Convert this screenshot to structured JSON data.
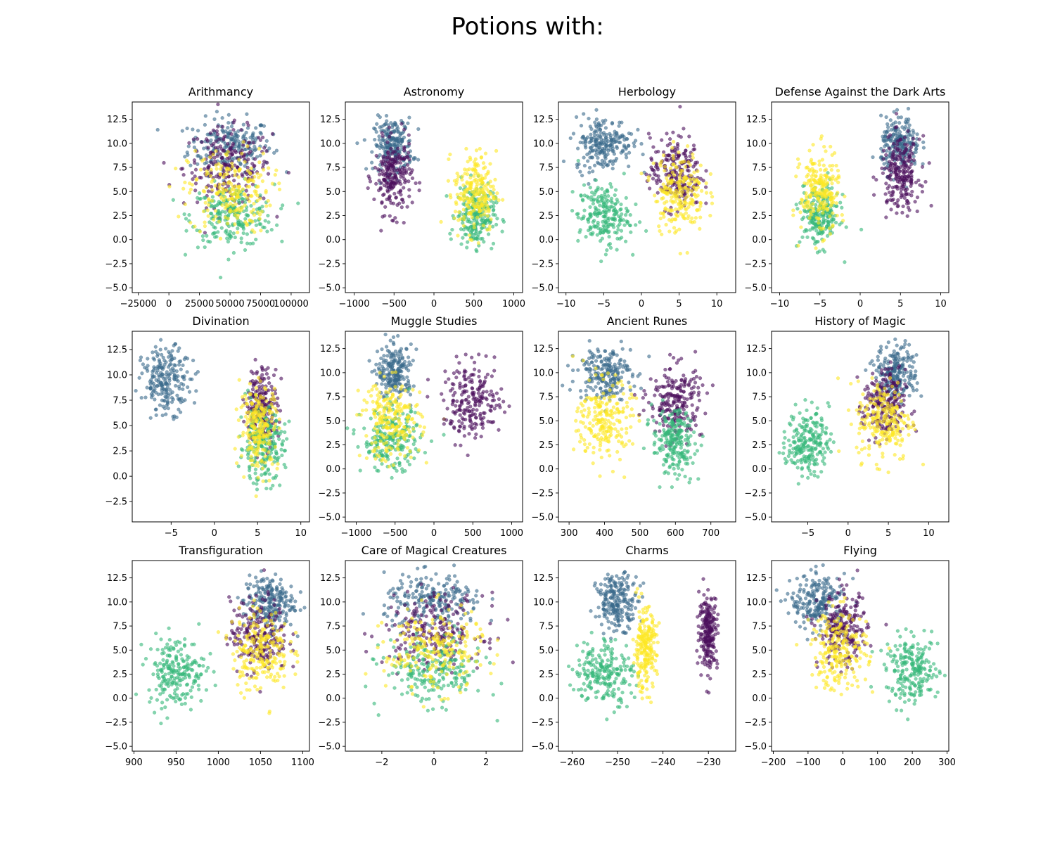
{
  "title": "Potions with:",
  "colors": {
    "Ravenclaw": "#3b6a8c",
    "Slytherin": "#4b0f5c",
    "Gryffindor": "#fde725",
    "Hufflepuff": "#35b779"
  },
  "chart_data": [
    {
      "type": "scatter",
      "title": "Arithmancy",
      "xlim": [
        -30000,
        115000
      ],
      "ylim": [
        -5.5,
        14.3
      ],
      "xticks": [
        {
          "v": -25000,
          "l": "−25000"
        },
        {
          "v": 0,
          "l": "0"
        },
        {
          "v": 25000,
          "l": "25000"
        },
        {
          "v": 50000,
          "l": "50000"
        },
        {
          "v": 75000,
          "l": "75000"
        },
        {
          "v": 100000,
          "l": "100000"
        }
      ],
      "series": [
        {
          "color": "#3b6a8c",
          "x_center": 50000,
          "x_spread": 17000,
          "y_center": 9.8,
          "y_spread": 1.4
        },
        {
          "color": "#4b0f5c",
          "x_center": 48000,
          "x_spread": 18000,
          "y_center": 7.5,
          "y_spread": 2.0
        },
        {
          "color": "#35b779",
          "x_center": 52000,
          "x_spread": 17000,
          "y_center": 2.5,
          "y_spread": 1.6
        },
        {
          "color": "#fde725",
          "x_center": 50000,
          "x_spread": 17000,
          "y_center": 5.0,
          "y_spread": 2.2
        }
      ]
    },
    {
      "type": "scatter",
      "title": "Astronomy",
      "xlim": [
        -1110,
        1110
      ],
      "ylim": [
        -5.5,
        14.3
      ],
      "xticks": [
        {
          "v": -1000,
          "l": "−1000"
        },
        {
          "v": -500,
          "l": "−500"
        },
        {
          "v": 0,
          "l": "0"
        },
        {
          "v": 500,
          "l": "500"
        },
        {
          "v": 1000,
          "l": "1000"
        }
      ],
      "series": [
        {
          "color": "#3b6a8c",
          "x_center": -510,
          "x_spread": 120,
          "y_center": 9.8,
          "y_spread": 1.4
        },
        {
          "color": "#4b0f5c",
          "x_center": -510,
          "x_spread": 120,
          "y_center": 6.5,
          "y_spread": 1.9
        },
        {
          "color": "#35b779",
          "x_center": 520,
          "x_spread": 120,
          "y_center": 2.5,
          "y_spread": 1.6
        },
        {
          "color": "#fde725",
          "x_center": 520,
          "x_spread": 130,
          "y_center": 5.0,
          "y_spread": 2.1
        }
      ]
    },
    {
      "type": "scatter",
      "title": "Herbology",
      "xlim": [
        -11,
        12.5
      ],
      "ylim": [
        -5.5,
        14.3
      ],
      "xticks": [
        {
          "v": -10,
          "l": "−10"
        },
        {
          "v": -5,
          "l": "−5"
        },
        {
          "v": 0,
          "l": "0"
        },
        {
          "v": 5,
          "l": "5"
        },
        {
          "v": 10,
          "l": "10"
        }
      ],
      "series": [
        {
          "color": "#3b6a8c",
          "x_center": -5,
          "x_spread": 1.9,
          "y_center": 10.0,
          "y_spread": 1.4
        },
        {
          "color": "#35b779",
          "x_center": -5,
          "x_spread": 1.7,
          "y_center": 2.5,
          "y_spread": 1.6
        },
        {
          "color": "#4b0f5c",
          "x_center": 4.5,
          "x_spread": 1.7,
          "y_center": 7.0,
          "y_spread": 1.9
        },
        {
          "color": "#fde725",
          "x_center": 5.0,
          "x_spread": 1.7,
          "y_center": 5.0,
          "y_spread": 2.1
        }
      ]
    },
    {
      "type": "scatter",
      "title": "Defense Against the Dark Arts",
      "xlim": [
        -11,
        11
      ],
      "ylim": [
        -5.5,
        14.3
      ],
      "xticks": [
        {
          "v": -10,
          "l": "−10"
        },
        {
          "v": -5,
          "l": "−5"
        },
        {
          "v": 0,
          "l": "0"
        },
        {
          "v": 5,
          "l": "5"
        },
        {
          "v": 10,
          "l": "10"
        }
      ],
      "series": [
        {
          "color": "#3b6a8c",
          "x_center": 5,
          "x_spread": 1.2,
          "y_center": 9.8,
          "y_spread": 1.4
        },
        {
          "color": "#4b0f5c",
          "x_center": 5,
          "x_spread": 1.2,
          "y_center": 6.8,
          "y_spread": 1.9
        },
        {
          "color": "#35b779",
          "x_center": -5,
          "x_spread": 1.2,
          "y_center": 2.5,
          "y_spread": 1.6
        },
        {
          "color": "#fde725",
          "x_center": -5,
          "x_spread": 1.2,
          "y_center": 5.0,
          "y_spread": 2.1
        }
      ]
    },
    {
      "type": "scatter",
      "title": "Divination",
      "xlim": [
        -9.5,
        11
      ],
      "ylim": [
        -4.5,
        14.3
      ],
      "xticks": [
        {
          "v": -5,
          "l": "−5"
        },
        {
          "v": 0,
          "l": "0"
        },
        {
          "v": 5,
          "l": "5"
        },
        {
          "v": 10,
          "l": "10"
        }
      ],
      "series": [
        {
          "color": "#3b6a8c",
          "x_center": -5.5,
          "x_spread": 1.4,
          "y_center": 9.5,
          "y_spread": 1.6
        },
        {
          "color": "#4b0f5c",
          "x_center": 5.5,
          "x_spread": 0.9,
          "y_center": 7.0,
          "y_spread": 1.9
        },
        {
          "color": "#35b779",
          "x_center": 5.5,
          "x_spread": 1.3,
          "y_center": 3.0,
          "y_spread": 1.8
        },
        {
          "color": "#fde725",
          "x_center": 5.2,
          "x_spread": 1.1,
          "y_center": 5.0,
          "y_spread": 2.1
        }
      ]
    },
    {
      "type": "scatter",
      "title": "Muggle Studies",
      "xlim": [
        -1140,
        1140
      ],
      "ylim": [
        -5.5,
        14.3
      ],
      "xticks": [
        {
          "v": -1000,
          "l": "−1000"
        },
        {
          "v": -500,
          "l": "−500"
        },
        {
          "v": 0,
          "l": "0"
        },
        {
          "v": 500,
          "l": "500"
        },
        {
          "v": 1000,
          "l": "1000"
        }
      ],
      "series": [
        {
          "color": "#3b6a8c",
          "x_center": -500,
          "x_spread": 110,
          "y_center": 10.0,
          "y_spread": 1.4
        },
        {
          "color": "#35b779",
          "x_center": -550,
          "x_spread": 190,
          "y_center": 3.0,
          "y_spread": 1.6
        },
        {
          "color": "#fde725",
          "x_center": -550,
          "x_spread": 190,
          "y_center": 5.0,
          "y_spread": 2.1
        },
        {
          "color": "#4b0f5c",
          "x_center": 500,
          "x_spread": 190,
          "y_center": 7.0,
          "y_spread": 1.9
        }
      ]
    },
    {
      "type": "scatter",
      "title": "Ancient Runes",
      "xlim": [
        270,
        770
      ],
      "ylim": [
        -5.5,
        14.3
      ],
      "xticks": [
        {
          "v": 300,
          "l": "300"
        },
        {
          "v": 400,
          "l": "400"
        },
        {
          "v": 500,
          "l": "500"
        },
        {
          "v": 600,
          "l": "600"
        },
        {
          "v": 700,
          "l": "700"
        }
      ],
      "series": [
        {
          "color": "#3b6a8c",
          "x_center": 400,
          "x_spread": 38,
          "y_center": 10.0,
          "y_spread": 1.4
        },
        {
          "color": "#fde725",
          "x_center": 400,
          "x_spread": 38,
          "y_center": 5.0,
          "y_spread": 2.1
        },
        {
          "color": "#4b0f5c",
          "x_center": 600,
          "x_spread": 38,
          "y_center": 7.0,
          "y_spread": 1.9
        },
        {
          "color": "#35b779",
          "x_center": 595,
          "x_spread": 30,
          "y_center": 2.8,
          "y_spread": 1.7
        }
      ]
    },
    {
      "type": "scatter",
      "title": "History of Magic",
      "xlim": [
        -9.5,
        12.5
      ],
      "ylim": [
        -5.5,
        14.3
      ],
      "xticks": [
        {
          "v": -5,
          "l": "−5"
        },
        {
          "v": 0,
          "l": "0"
        },
        {
          "v": 5,
          "l": "5"
        },
        {
          "v": 10,
          "l": "10"
        }
      ],
      "series": [
        {
          "color": "#35b779",
          "x_center": -5,
          "x_spread": 1.3,
          "y_center": 2.8,
          "y_spread": 1.7
        },
        {
          "color": "#3b6a8c",
          "x_center": 6,
          "x_spread": 1.3,
          "y_center": 10.0,
          "y_spread": 1.4
        },
        {
          "color": "#4b0f5c",
          "x_center": 4.5,
          "x_spread": 1.3,
          "y_center": 6.5,
          "y_spread": 1.9
        },
        {
          "color": "#fde725",
          "x_center": 4.5,
          "x_spread": 1.7,
          "y_center": 5.0,
          "y_spread": 2.1
        }
      ]
    },
    {
      "type": "scatter",
      "title": "Transfiguration",
      "xlim": [
        898,
        1108
      ],
      "ylim": [
        -5.5,
        14.3
      ],
      "xticks": [
        {
          "v": 900,
          "l": "900"
        },
        {
          "v": 950,
          "l": "950"
        },
        {
          "v": 1000,
          "l": "1000"
        },
        {
          "v": 1050,
          "l": "1050"
        },
        {
          "v": 1100,
          "l": "1100"
        }
      ],
      "series": [
        {
          "color": "#35b779",
          "x_center": 950,
          "x_spread": 17,
          "y_center": 2.8,
          "y_spread": 1.8
        },
        {
          "color": "#3b6a8c",
          "x_center": 1060,
          "x_spread": 15,
          "y_center": 10.0,
          "y_spread": 1.4
        },
        {
          "color": "#4b0f5c",
          "x_center": 1048,
          "x_spread": 17,
          "y_center": 6.5,
          "y_spread": 1.9
        },
        {
          "color": "#fde725",
          "x_center": 1050,
          "x_spread": 17,
          "y_center": 5.0,
          "y_spread": 2.1
        }
      ]
    },
    {
      "type": "scatter",
      "title": "Care of Magical Creatures",
      "xlim": [
        -3.4,
        3.4
      ],
      "ylim": [
        -5.5,
        14.3
      ],
      "xticks": [
        {
          "v": -2,
          "l": "−2"
        },
        {
          "v": 0,
          "l": "0"
        },
        {
          "v": 2,
          "l": "2"
        }
      ],
      "series": [
        {
          "color": "#3b6a8c",
          "x_center": 0,
          "x_spread": 0.95,
          "y_center": 10.0,
          "y_spread": 1.4
        },
        {
          "color": "#4b0f5c",
          "x_center": 0,
          "x_spread": 0.95,
          "y_center": 7.0,
          "y_spread": 1.9
        },
        {
          "color": "#35b779",
          "x_center": 0,
          "x_spread": 0.95,
          "y_center": 2.8,
          "y_spread": 1.7
        },
        {
          "color": "#fde725",
          "x_center": 0,
          "x_spread": 0.95,
          "y_center": 5.0,
          "y_spread": 2.1
        }
      ]
    },
    {
      "type": "scatter",
      "title": "Charms",
      "xlim": [
        -263,
        -224
      ],
      "ylim": [
        -5.5,
        14.3
      ],
      "xticks": [
        {
          "v": -260,
          "l": "−260"
        },
        {
          "v": -250,
          "l": "−250"
        },
        {
          "v": -240,
          "l": "−240"
        },
        {
          "v": -230,
          "l": "−230"
        }
      ],
      "series": [
        {
          "color": "#3b6a8c",
          "x_center": -250,
          "x_spread": 2.3,
          "y_center": 10.0,
          "y_spread": 1.4
        },
        {
          "color": "#35b779",
          "x_center": -253,
          "x_spread": 3.2,
          "y_center": 2.8,
          "y_spread": 1.7
        },
        {
          "color": "#fde725",
          "x_center": -244,
          "x_spread": 1.3,
          "y_center": 5.0,
          "y_spread": 2.1
        },
        {
          "color": "#4b0f5c",
          "x_center": -230,
          "x_spread": 1.0,
          "y_center": 7.0,
          "y_spread": 1.9
        }
      ]
    },
    {
      "type": "scatter",
      "title": "Flying",
      "xlim": [
        -205,
        305
      ],
      "ylim": [
        -5.5,
        14.3
      ],
      "xticks": [
        {
          "v": -200,
          "l": "−200"
        },
        {
          "v": -100,
          "l": "−100"
        },
        {
          "v": 0,
          "l": "0"
        },
        {
          "v": 100,
          "l": "100"
        },
        {
          "v": 200,
          "l": "200"
        },
        {
          "v": 300,
          "l": "300"
        }
      ],
      "series": [
        {
          "color": "#3b6a8c",
          "x_center": -70,
          "x_spread": 40,
          "y_center": 10.0,
          "y_spread": 1.4
        },
        {
          "color": "#4b0f5c",
          "x_center": 0,
          "x_spread": 35,
          "y_center": 7.0,
          "y_spread": 1.9
        },
        {
          "color": "#fde725",
          "x_center": -10,
          "x_spread": 40,
          "y_center": 5.0,
          "y_spread": 2.1
        },
        {
          "color": "#35b779",
          "x_center": 200,
          "x_spread": 38,
          "y_center": 2.8,
          "y_spread": 1.7
        }
      ]
    }
  ],
  "shared_yticks": [
    {
      "v": -5.0,
      "l": "−5.0"
    },
    {
      "v": -2.5,
      "l": "−2.5"
    },
    {
      "v": 0.0,
      "l": "0.0"
    },
    {
      "v": 2.5,
      "l": "2.5"
    },
    {
      "v": 5.0,
      "l": "5.0"
    },
    {
      "v": 7.5,
      "l": "7.5"
    },
    {
      "v": 10.0,
      "l": "10.0"
    },
    {
      "v": 12.5,
      "l": "12.5"
    }
  ]
}
